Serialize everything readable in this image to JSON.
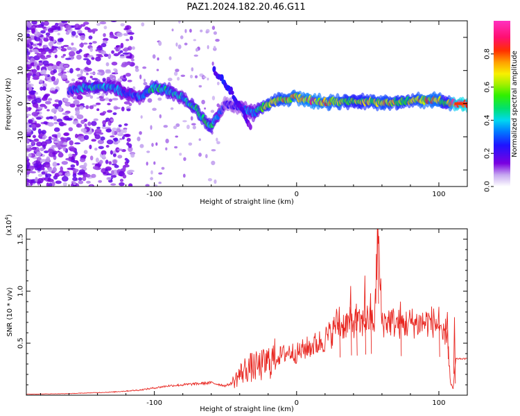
{
  "figure": {
    "title": "PAZ1.2024.182.20.46.G11"
  },
  "colors": {
    "snr_line": "#e8251f",
    "frame": "#000000",
    "background": "#ffffff"
  },
  "colorbar": {
    "label": "Normalized spectral amplitude",
    "ticks": [
      "0.0",
      "0.2",
      "0.4",
      "0.6",
      "0.8"
    ],
    "range": [
      0,
      1
    ],
    "colormap": "gist_ncar-like (white→purple→blue→cyan→green→yellow→red→magenta)"
  },
  "chart_data": [
    {
      "type": "heatmap",
      "name_in_figure": "spectrogram",
      "xlabel": "Height of straight line (km)",
      "ylabel": "Frequency (Hz)",
      "xlim": [
        -190,
        120
      ],
      "ylim": [
        -25,
        25
      ],
      "xticks": [
        -100,
        0,
        100
      ],
      "xtick_labels": [
        "-100",
        "0",
        "100"
      ],
      "yticks": [
        -20,
        -10,
        0,
        10,
        20
      ],
      "ytick_labels": [
        "-20",
        "-10",
        "0",
        "10",
        "20"
      ],
      "ridge": {
        "x": [
          -160,
          -150,
          -140,
          -130,
          -120,
          -110,
          -100,
          -90,
          -80,
          -70,
          -65,
          -60,
          -50,
          -40,
          -30,
          -20,
          -10,
          0,
          10,
          20,
          30,
          40,
          50,
          60,
          70,
          80,
          90,
          100,
          105,
          110,
          115,
          120
        ],
        "y": [
          4,
          5,
          5,
          5,
          3,
          2,
          5,
          4,
          2,
          -2,
          -5,
          -7,
          0,
          -1,
          -3,
          0,
          1,
          2,
          1,
          0.5,
          0.5,
          1,
          0.5,
          0.5,
          0.5,
          1,
          1,
          1,
          0,
          0,
          0,
          0
        ],
        "amplitude": [
          0.25,
          0.35,
          0.4,
          0.35,
          0.3,
          0.3,
          0.45,
          0.4,
          0.35,
          0.45,
          0.45,
          0.45,
          0.2,
          0.25,
          0.35,
          0.6,
          0.65,
          0.7,
          0.75,
          0.7,
          0.65,
          0.55,
          0.6,
          0.65,
          0.6,
          0.6,
          0.7,
          0.7,
          0.45,
          0.85,
          0.9,
          0.9
        ]
      },
      "secondary_branch": {
        "x": [
          -58,
          -50,
          -45,
          -38,
          -32
        ],
        "y": [
          10,
          6,
          3,
          -2,
          -7
        ],
        "amplitude": [
          0.2,
          0.25,
          0.25,
          0.2,
          0.15
        ]
      }
    },
    {
      "type": "line",
      "name_in_figure": "snr",
      "xlabel": "Height of straight line (km)",
      "ylabel": "SNR (10 * v/v)",
      "y_exponent_label": "(x10",
      "y_exponent_power": "4",
      "y_exponent_close": ")",
      "xlim": [
        -190,
        120
      ],
      "ylim": [
        0,
        16000
      ],
      "xticks": [
        -100,
        0,
        100
      ],
      "xtick_labels": [
        "-100",
        "0",
        "100"
      ],
      "yticks": [
        5000,
        10000,
        15000
      ],
      "ytick_labels": [
        "0.5",
        "1.0",
        "1.5"
      ],
      "series": [
        {
          "x": [
            -190,
            -160,
            -130,
            -110,
            -100,
            -90,
            -80,
            -70,
            -60,
            -50,
            -45,
            -40,
            -35,
            -30,
            -25,
            -20,
            -15,
            -10,
            -5,
            0,
            5,
            10,
            15,
            20,
            25,
            28,
            30,
            35,
            40,
            45,
            50,
            55,
            57,
            60,
            65,
            70,
            75,
            80,
            85,
            90,
            95,
            100,
            102,
            104,
            106,
            108,
            110,
            112,
            115,
            120
          ],
          "y": [
            100,
            150,
            300,
            500,
            700,
            900,
            1000,
            1100,
            1200,
            900,
            1200,
            2000,
            2600,
            2700,
            2800,
            3200,
            3600,
            3900,
            4200,
            4000,
            4400,
            4700,
            5000,
            5400,
            6000,
            7000,
            6600,
            6900,
            7000,
            6800,
            7300,
            7100,
            16000,
            7000,
            7200,
            6900,
            6800,
            7000,
            6900,
            7000,
            7100,
            6700,
            5200,
            6000,
            6300,
            1200,
            600,
            3500,
            3500,
            3500
          ],
          "spikes": [
            {
              "x": 30,
              "y": 8500
            },
            {
              "x": 38,
              "y": 10500
            },
            {
              "x": 42,
              "y": 8800
            },
            {
              "x": 48,
              "y": 11500
            },
            {
              "x": 52,
              "y": 9800
            },
            {
              "x": 57,
              "y": 16000
            },
            {
              "x": 73,
              "y": 9000
            },
            {
              "x": 100,
              "y": 8500
            },
            {
              "x": 106,
              "y": 8000
            },
            {
              "x": 111,
              "y": 7500
            }
          ]
        }
      ]
    }
  ]
}
